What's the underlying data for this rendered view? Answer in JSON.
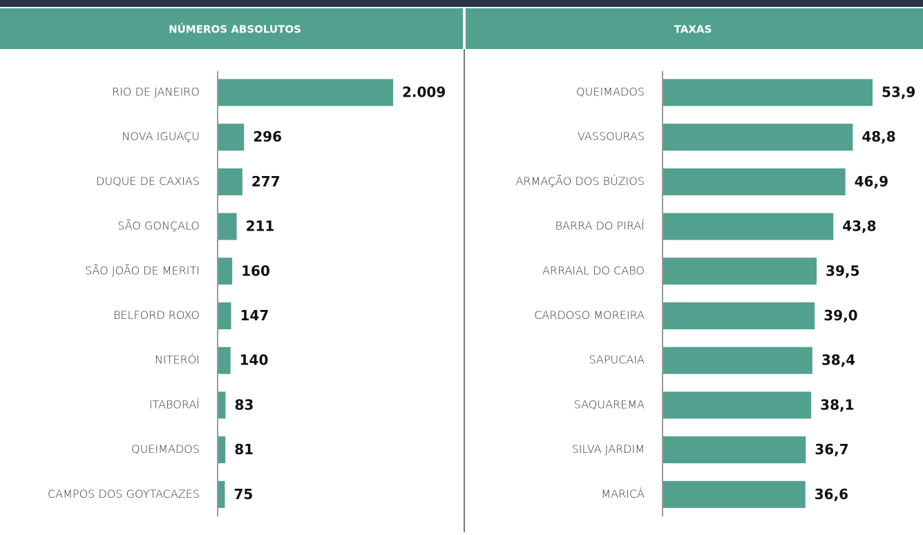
{
  "chart_data": [
    {
      "type": "hbar",
      "title": "NÚMEROS ABSOLUTOS",
      "color": "#52a08e",
      "categories": [
        "RIO DE JANEIRO",
        "NOVA IGUAÇU",
        "DUQUE DE CAXIAS",
        "SÃO GONÇALO",
        "SÃO JOÃO DE MERITI",
        "BELFORD ROXO",
        "NITERÓI",
        "ITABORAÍ",
        "QUEIMADOS",
        "CAMPOS DOS GOYTACAZES"
      ],
      "values": [
        2009,
        296,
        277,
        211,
        160,
        147,
        140,
        83,
        81,
        75
      ],
      "value_labels": [
        "2.009",
        "296",
        "277",
        "211",
        "160",
        "147",
        "140",
        "83",
        "81",
        "75"
      ]
    },
    {
      "type": "hbar",
      "title": "TAXAS",
      "color": "#52a08e",
      "categories": [
        "QUEIMADOS",
        "VASSOURAS",
        "ARMAÇÃO DOS BÚZIOS",
        "BARRA DO PIRAÍ",
        "ARRAIAL DO CABO",
        "CARDOSO MOREIRA",
        "SAPUCAIA",
        "SAQUAREMA",
        "SILVA JARDIM",
        "MARICÁ"
      ],
      "values": [
        53.9,
        48.8,
        46.9,
        43.8,
        39.5,
        39.0,
        38.4,
        38.1,
        36.7,
        36.6
      ],
      "value_labels": [
        "53,9",
        "48,8",
        "46,9",
        "43,8",
        "39,5",
        "39,0",
        "38,4",
        "38,1",
        "36,7",
        "36,6"
      ]
    }
  ]
}
